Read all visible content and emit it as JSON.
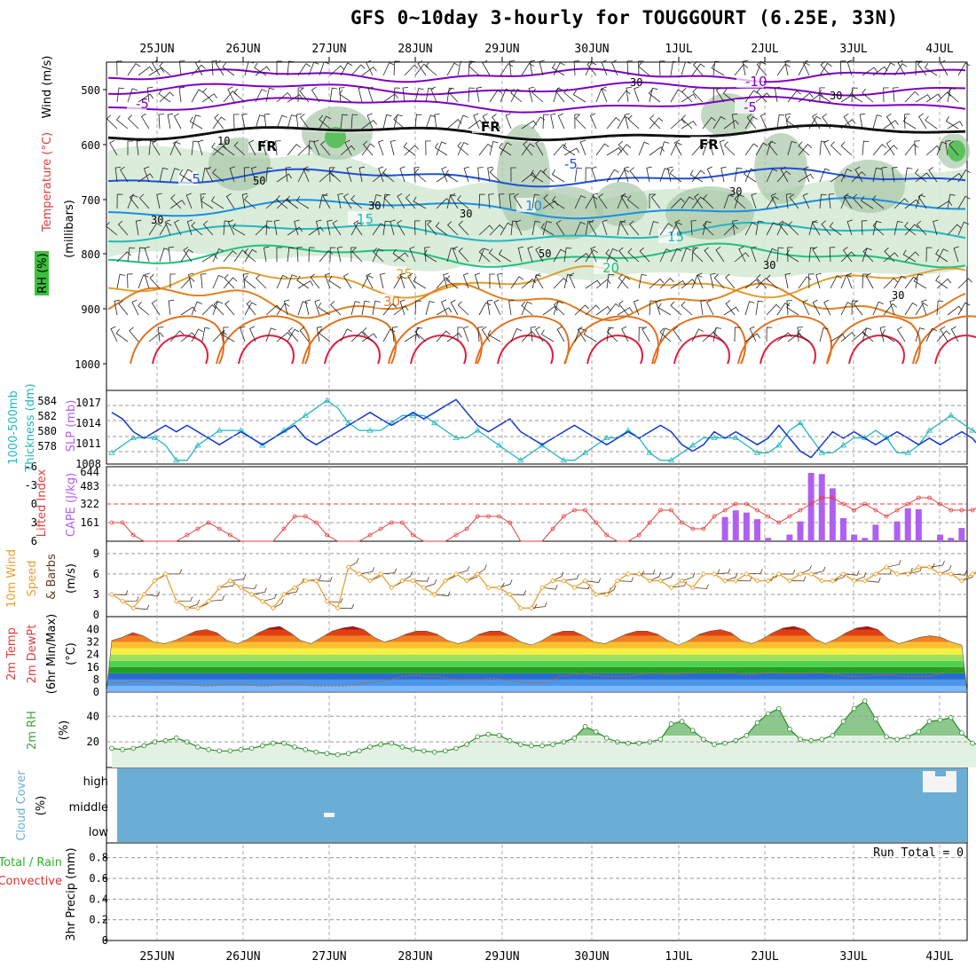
{
  "title": "GFS 0~10day 3-hourly for TOUGGOURT (6.25E, 33N)",
  "dates": [
    "25JUN",
    "26JUN",
    "27JUN",
    "28JUN",
    "29JUN",
    "30JUN",
    "1JUL",
    "2JUL",
    "3JUL",
    "4JUL"
  ],
  "colors": {
    "rh": "#3cbf3c",
    "temp": "#e03c3c",
    "wind": "#8000c0",
    "thick": "#20b8c0",
    "slp": "#1038d0",
    "cape": "#b060f0",
    "li": "#e04040",
    "ws": "#e8a030",
    "barb": "#5a3a20",
    "rh2m": "#40a040",
    "cloud": "#6aaed6",
    "precip_total": "#30b030",
    "precip_conv": "#e03030"
  },
  "panels": {
    "upper": {
      "axis_labels": {
        "wind": "Wind (m/s)",
        "temperature": "Temperature (°C)",
        "rh": "RH (%)",
        "pressure": "(millibars)"
      },
      "pressure_ticks": [
        "500",
        "600",
        "700",
        "800",
        "900",
        "1000"
      ],
      "contour_labels": [
        "-10",
        "-5",
        "-5",
        "-5",
        "FR",
        "FR",
        "FR",
        "5",
        "5",
        "10",
        "15",
        "15",
        "20",
        "25",
        "30",
        "30",
        "30",
        "30",
        "30",
        "30",
        "30",
        "30",
        "50"
      ]
    },
    "thickness": {
      "left_label1": "1000-500mb",
      "left_label2": "Thickness (dm)",
      "right_label": "SLP (mb)",
      "thick_ticks": [
        "584",
        "582",
        "580",
        "578"
      ],
      "slp_ticks": [
        "1017",
        "1014",
        "1011",
        "1008"
      ]
    },
    "cape": {
      "label_li": "Lifted Index",
      "label_cape": "CAPE (J/kg)",
      "li_ticks": [
        "-6",
        "-3",
        "0",
        "3",
        "6"
      ],
      "cape_ticks": [
        "644",
        "483",
        "322",
        "161"
      ]
    },
    "wind10": {
      "label": "10m Wind Speed & Barbs",
      "unit": "(m/s)",
      "ticks": [
        "9",
        "6",
        "3",
        "0"
      ]
    },
    "temp2m": {
      "label": "2m Temp 2m DewPt (6hr Min/Max)",
      "unit": "(°C)",
      "ticks": [
        "40",
        "32",
        "24",
        "16",
        "8",
        "0"
      ]
    },
    "rh2m": {
      "label": "2m RH",
      "unit": "(%)",
      "ticks": [
        "40",
        "20"
      ]
    },
    "cloud": {
      "label": "Cloud Cover",
      "unit": "(%)",
      "levels": [
        "high",
        "middle",
        "low"
      ]
    },
    "precip": {
      "label_total": "Total / Rain",
      "label_conv": "Convective",
      "label_axis": "3hr Precip (mm)",
      "run_total": "Run Total = 0",
      "ticks": [
        "0.8",
        "0.6",
        "0.4",
        "0.2",
        "0"
      ]
    }
  },
  "chart_data": [
    {
      "type": "line",
      "name": "SLP",
      "unit": "mb",
      "x_step": "3h",
      "values": [
        1016,
        1015,
        1013,
        1012,
        1013,
        1014,
        1013,
        1014,
        1013,
        1012,
        1011,
        1012,
        1013,
        1012,
        1011,
        1012,
        1013,
        1014,
        1012,
        1011,
        1012,
        1013,
        1014,
        1015,
        1016,
        1015,
        1014,
        1015,
        1016,
        1015,
        1016,
        1017,
        1018,
        1016,
        1014,
        1013,
        1014,
        1015,
        1013,
        1012,
        1011,
        1012,
        1013,
        1014,
        1013,
        1012,
        1011,
        1012,
        1013,
        1012,
        1013,
        1014,
        1013,
        1011,
        1010,
        1011,
        1013,
        1012,
        1013,
        1012,
        1011,
        1012,
        1014,
        1012,
        1010,
        1009,
        1011,
        1013,
        1012,
        1013,
        1012,
        1011,
        1012,
        1013,
        1012,
        1011,
        1012,
        1011,
        1012,
        1013,
        1012,
        1010,
        1009,
        1010,
        1012,
        1011,
        1012
      ]
    },
    {
      "type": "line",
      "name": "1000-500mb Thickness",
      "unit": "dm",
      "x_step": "3h",
      "values": [
        578,
        579,
        580,
        580,
        580,
        579,
        577,
        577,
        579,
        580,
        581,
        581,
        581,
        580,
        579,
        580,
        581,
        582,
        583,
        584,
        585,
        584,
        582,
        581,
        581,
        581,
        582,
        583,
        583,
        583,
        582,
        581,
        580,
        580,
        581,
        580,
        579,
        578,
        577,
        578,
        579,
        578,
        577,
        577,
        578,
        579,
        580,
        580,
        581,
        580,
        578,
        577,
        577,
        578,
        579,
        580,
        580,
        580,
        580,
        579,
        578,
        578,
        579,
        581,
        582,
        580,
        578,
        578,
        579,
        580,
        580,
        581,
        580,
        578,
        578,
        579,
        581,
        582,
        583,
        582,
        581,
        580,
        580,
        580,
        580,
        580,
        579
      ]
    },
    {
      "type": "line",
      "name": "Lifted Index",
      "unit": "°C",
      "x_step": "3h",
      "values": [
        3,
        3,
        5,
        6,
        7,
        7,
        6,
        5,
        4,
        3,
        4,
        5,
        6,
        7,
        7,
        6,
        4,
        2,
        2,
        3,
        5,
        7,
        7,
        6,
        5,
        4,
        3,
        3,
        5,
        6,
        7,
        6,
        5,
        4,
        2,
        2,
        2,
        3,
        6,
        7,
        6,
        4,
        2,
        1,
        1,
        3,
        5,
        7,
        7,
        5,
        3,
        1,
        1,
        3,
        4,
        4,
        2,
        1,
        0,
        0,
        1,
        2,
        3,
        2,
        1,
        0,
        -1,
        -1,
        0,
        1,
        0,
        1,
        2,
        1,
        0,
        -1,
        -1,
        0,
        1,
        1,
        1,
        0,
        -1,
        0,
        1,
        1,
        1
      ]
    },
    {
      "type": "bar",
      "name": "CAPE",
      "unit": "J/kg",
      "values_by_index": {
        "57": 220,
        "58": 280,
        "59": 260,
        "60": 200,
        "61": 30,
        "63": 60,
        "64": 180,
        "65": 620,
        "66": 610,
        "67": 480,
        "68": 210,
        "69": 60,
        "70": 30,
        "71": 150,
        "73": 180,
        "74": 300,
        "75": 290,
        "77": 60,
        "78": 30,
        "79": 120
      }
    },
    {
      "type": "line",
      "name": "10m Wind Speed",
      "unit": "m/s",
      "x_step": "3h",
      "values": [
        3,
        2,
        1,
        3,
        5,
        6,
        2,
        1,
        1,
        2,
        4,
        5,
        4,
        3,
        2,
        1,
        3,
        4,
        5,
        5,
        2,
        1,
        7,
        6,
        5,
        6,
        4,
        5,
        5,
        4,
        3,
        5,
        6,
        5,
        6,
        4,
        4,
        3,
        1,
        1,
        4,
        5,
        5,
        4,
        5,
        3,
        3,
        5,
        6,
        6,
        5,
        5,
        4,
        5,
        4,
        6,
        6,
        5,
        5,
        6,
        5,
        5,
        6,
        5,
        6,
        6,
        5,
        5,
        6,
        5,
        5,
        6,
        7,
        6,
        6,
        7,
        7,
        6,
        6,
        5,
        6,
        7,
        9,
        8,
        7,
        6,
        6
      ]
    },
    {
      "type": "area",
      "name": "2m Temp (6hr Max)",
      "unit": "°C",
      "values": [
        33,
        35,
        38,
        36,
        32,
        31,
        33,
        36,
        39,
        40,
        38,
        33,
        31,
        34,
        38,
        41,
        42,
        38,
        33,
        31,
        35,
        39,
        41,
        42,
        40,
        35,
        32,
        34,
        37,
        39,
        39,
        37,
        33,
        31,
        33,
        37,
        39,
        39,
        36,
        32,
        30,
        33,
        37,
        39,
        39,
        36,
        32,
        31,
        34,
        37,
        39,
        39,
        37,
        33,
        30,
        33,
        37,
        39,
        40,
        38,
        33,
        31,
        34,
        38,
        41,
        42,
        40,
        34,
        31,
        34,
        38,
        41,
        42,
        40,
        34,
        31,
        33,
        35,
        36,
        35,
        32,
        30
      ]
    },
    {
      "type": "line",
      "name": "2m DewPt",
      "unit": "°C",
      "values": [
        6,
        6,
        7,
        7,
        6,
        6,
        5,
        5,
        4,
        4,
        5,
        5,
        5,
        4,
        4,
        5,
        5,
        5,
        4,
        4,
        4,
        4,
        5,
        6,
        7,
        8,
        10,
        11,
        10,
        10,
        9,
        8,
        8,
        8,
        9,
        8,
        7,
        6,
        6,
        6,
        10,
        11,
        12,
        11,
        10,
        10,
        10,
        11,
        12,
        12,
        11,
        12,
        13,
        14,
        14,
        13,
        12,
        11,
        12,
        13,
        12,
        12,
        12,
        13,
        12,
        11,
        10,
        10,
        11,
        11,
        11,
        10,
        10,
        10,
        12,
        14,
        15
      ]
    },
    {
      "type": "area",
      "name": "2m RH",
      "unit": "%",
      "x_step": "3h",
      "values": [
        15,
        14,
        15,
        17,
        20,
        21,
        23,
        20,
        16,
        14,
        13,
        13,
        14,
        15,
        17,
        19,
        19,
        16,
        14,
        12,
        11,
        10,
        11,
        13,
        16,
        18,
        19,
        16,
        14,
        13,
        12,
        13,
        15,
        18,
        24,
        26,
        25,
        21,
        18,
        17,
        17,
        18,
        20,
        23,
        32,
        28,
        23,
        20,
        19,
        19,
        20,
        22,
        34,
        36,
        29,
        22,
        18,
        19,
        21,
        25,
        35,
        42,
        46,
        30,
        22,
        21,
        22,
        25,
        36,
        46,
        52,
        38,
        24,
        22,
        24,
        28,
        36,
        37,
        39,
        27,
        19,
        17,
        19,
        25,
        35,
        40,
        42
      ]
    },
    {
      "type": "bar",
      "name": "Cloud Cover",
      "levels": [
        "low",
        "middle",
        "high"
      ]
    },
    {
      "type": "bar",
      "name": "3hr Precip",
      "unit": "mm",
      "values": [],
      "ylim": [
        0,
        0.9
      ]
    }
  ]
}
